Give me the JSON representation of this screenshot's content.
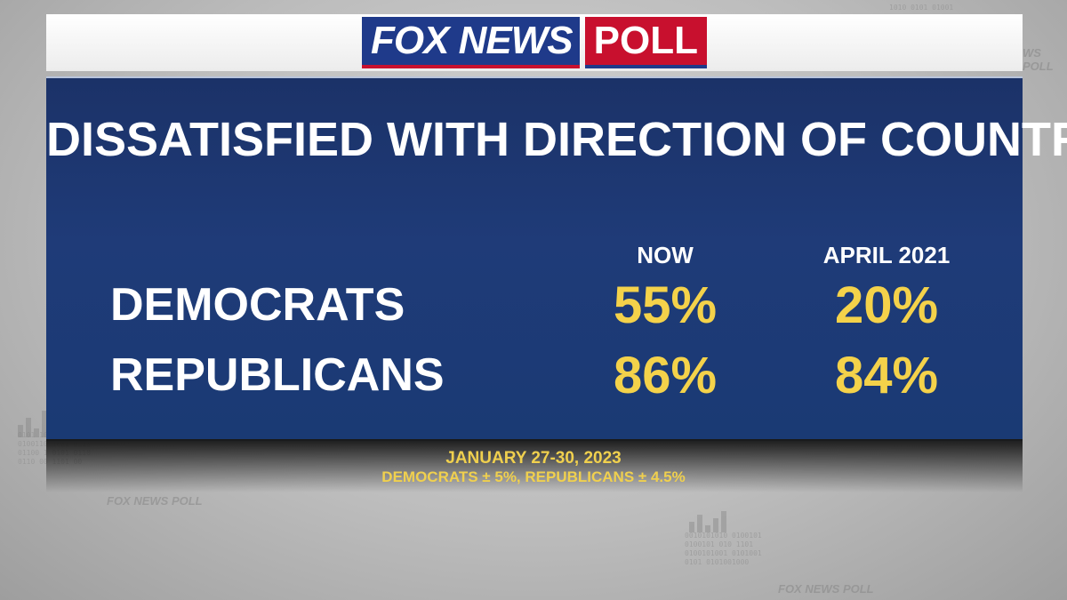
{
  "logo": {
    "brand": "FOX NEWS",
    "product": "POLL"
  },
  "chart_data": {
    "type": "table",
    "title": "DISSATISFIED WITH DIRECTION OF COUNTRY",
    "columns": [
      "NOW",
      "APRIL 2021"
    ],
    "rows": [
      {
        "label": "DEMOCRATS",
        "values": [
          "55%",
          "20%"
        ]
      },
      {
        "label": "REPUBLICANS",
        "values": [
          "86%",
          "84%"
        ]
      }
    ]
  },
  "footer": {
    "date": "JANUARY 27-30, 2023",
    "margins": "DEMOCRATS ± 5%, REPUBLICANS ± 4.5%"
  },
  "colors": {
    "panel": "#1f3b78",
    "value": "#f4d24a",
    "fox_blue": "#1f3a8a",
    "poll_red": "#c8102e"
  }
}
